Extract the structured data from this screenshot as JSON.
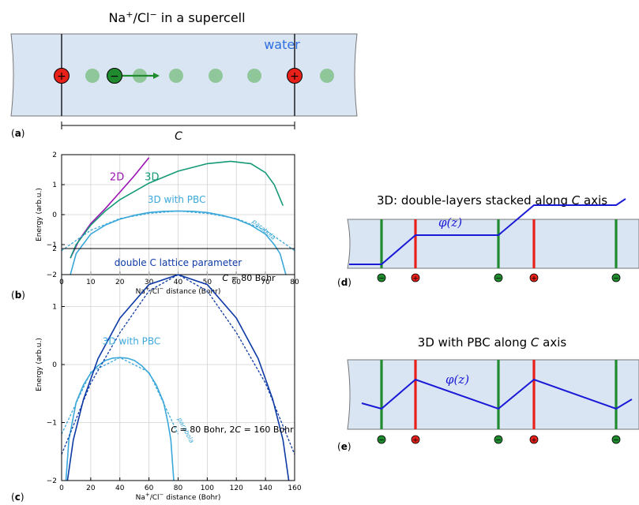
{
  "colors": {
    "water": "#dae5f4",
    "anion": "#1f8a2e",
    "cation": "#e8201a",
    "c2d": "#9a12b3",
    "c3d": "#159a78",
    "pbc": "#3aa8da",
    "double": "#0e3aa6",
    "phi": "#1a1ad6"
  },
  "panel_a": {
    "title_parts": [
      "Na",
      "+",
      "/Cl",
      "−",
      " in a supercell"
    ],
    "water_label": "water",
    "cation_sign": "+",
    "anion_sign": "−",
    "tag": "a",
    "length_label": "C"
  },
  "panel_b": {
    "tag": "b",
    "note": "C = 80 Bohr"
  },
  "panel_c": {
    "tag": "c",
    "note": "C = 80 Bohr, 2C = 160 Bohr"
  },
  "panel_d": {
    "title_pre": "3D: double-layers stacked along ",
    "title_var": "C",
    "title_post": " axis",
    "phi_label": "φ(z)",
    "tag": "d"
  },
  "panel_e": {
    "title_pre": "3D with PBC along ",
    "title_var": "C",
    "title_post": " axis",
    "phi_label": "φ(z)",
    "tag": "e"
  },
  "chart_data": [
    {
      "type": "line",
      "panel": "b",
      "xlabel": "Na+/Cl− distance (Bohr)",
      "ylabel": "Energy (arb.u.)",
      "xlim": [
        0,
        80
      ],
      "ylim": [
        -2,
        2
      ],
      "xticks": [
        0,
        10,
        20,
        30,
        40,
        50,
        60,
        70,
        80
      ],
      "yticks": [
        -2,
        -1,
        0,
        1,
        2
      ],
      "grid": true,
      "series": [
        {
          "name": "2D",
          "x": [
            3,
            6,
            10,
            15,
            20,
            25,
            30
          ],
          "y": [
            -1.45,
            -0.85,
            -0.3,
            0.2,
            0.75,
            1.3,
            1.9
          ]
        },
        {
          "name": "3D",
          "x": [
            3,
            5,
            10,
            15,
            20,
            30,
            40,
            50,
            58,
            65,
            70,
            73,
            76
          ],
          "y": [
            -1.45,
            -1.0,
            -0.35,
            0.12,
            0.5,
            1.05,
            1.45,
            1.7,
            1.78,
            1.7,
            1.4,
            1.0,
            0.3
          ]
        },
        {
          "name": "3D with PBC",
          "x": [
            3,
            5,
            10,
            15,
            20,
            25,
            30,
            35,
            40,
            45,
            50,
            55,
            60,
            65,
            70,
            73,
            75,
            77
          ],
          "y": [
            -2.0,
            -1.3,
            -0.65,
            -0.35,
            -0.15,
            -0.02,
            0.07,
            0.11,
            0.12,
            0.11,
            0.07,
            -0.02,
            -0.15,
            -0.35,
            -0.65,
            -1.0,
            -1.3,
            -2.0
          ]
        },
        {
          "name": "parabola",
          "x": [
            0,
            10,
            20,
            30,
            40,
            50,
            60,
            70,
            80
          ],
          "y": [
            -1.2,
            -0.52,
            -0.13,
            0.04,
            0.12,
            0.04,
            -0.13,
            -0.52,
            -1.2
          ]
        }
      ],
      "annotations": [
        "2D",
        "3D",
        "3D with PBC",
        "parabola",
        "C = 80 Bohr"
      ]
    },
    {
      "type": "line",
      "panel": "c",
      "xlabel": "Na+/Cl− distance (Bohr)",
      "ylabel": "Energy (arb.u.)",
      "xlim": [
        0,
        160
      ],
      "ylim": [
        -2,
        2
      ],
      "xticks": [
        0,
        20,
        40,
        60,
        80,
        100,
        120,
        140,
        160
      ],
      "yticks": [
        -2,
        -1,
        0,
        1,
        2
      ],
      "grid": true,
      "series": [
        {
          "name": "3D with PBC",
          "x": [
            3,
            5,
            10,
            15,
            20,
            25,
            30,
            35,
            40,
            45,
            50,
            55,
            60,
            65,
            70,
            73,
            75,
            77
          ],
          "y": [
            -2.0,
            -1.3,
            -0.65,
            -0.35,
            -0.15,
            -0.02,
            0.07,
            0.11,
            0.12,
            0.11,
            0.07,
            -0.02,
            -0.15,
            -0.35,
            -0.65,
            -1.0,
            -1.3,
            -2.0
          ]
        },
        {
          "name": "parabola (3D with PBC)",
          "x": [
            0,
            20,
            40,
            60,
            80
          ],
          "y": [
            -1.2,
            -0.13,
            0.12,
            -0.13,
            -1.2
          ]
        },
        {
          "name": "double C lattice parameter",
          "x": [
            4,
            8,
            15,
            25,
            40,
            60,
            80,
            100,
            120,
            135,
            145,
            152,
            156
          ],
          "y": [
            -2.0,
            -1.3,
            -0.6,
            0.1,
            0.8,
            1.38,
            1.55,
            1.38,
            0.8,
            0.1,
            -0.6,
            -1.3,
            -2.0
          ]
        },
        {
          "name": "parabola (double C)",
          "x": [
            0,
            20,
            40,
            60,
            80,
            100,
            120,
            140,
            160
          ],
          "y": [
            -1.55,
            -0.32,
            0.55,
            1.27,
            1.55,
            1.27,
            0.55,
            -0.32,
            -1.55
          ]
        }
      ],
      "annotations": [
        "double C lattice parameter",
        "3D with PBC",
        "parabola",
        "C = 80 Bohr, 2C = 160 Bohr"
      ]
    }
  ]
}
